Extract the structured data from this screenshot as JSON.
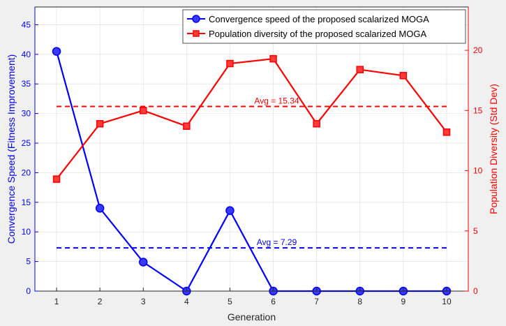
{
  "chart_data": {
    "type": "line",
    "title": "",
    "xlabel": "Generation",
    "ylabel_left": "Convergence Speed (Fitness Improvement)",
    "ylabel_right": "Population Diversity (Std Dev)",
    "x": [
      1,
      2,
      3,
      4,
      5,
      6,
      7,
      8,
      9,
      10
    ],
    "x_ticks": [
      "1",
      "2",
      "3",
      "4",
      "5",
      "6",
      "7",
      "8",
      "9",
      "10"
    ],
    "xlim": [
      0.5,
      10.5
    ],
    "ylim_left": [
      0,
      48
    ],
    "ylim_right": [
      0,
      23.6
    ],
    "y_ticks_left": [
      "0",
      "5",
      "10",
      "15",
      "20",
      "25",
      "30",
      "35",
      "40",
      "45"
    ],
    "y_tick_values_left": [
      0,
      5,
      10,
      15,
      20,
      25,
      30,
      35,
      40,
      45
    ],
    "y_ticks_right": [
      "0",
      "5",
      "10",
      "15",
      "20"
    ],
    "y_tick_values_right": [
      0,
      5,
      10,
      15,
      20
    ],
    "grid": true,
    "legend_position": "top-right",
    "series": [
      {
        "name": "Convergence speed of the proposed scalarized MOGA",
        "axis": "left",
        "color": "#0000ff",
        "marker": "circle",
        "values": [
          40.5,
          14.0,
          4.9,
          0.0,
          13.6,
          0.0,
          0.0,
          0.0,
          0.0,
          0.0
        ],
        "average": {
          "value": 7.29,
          "label": "Avg = 7.29"
        }
      },
      {
        "name": "Population diversity of the proposed scalarized MOGA",
        "axis": "right",
        "color": "#ff0000",
        "marker": "square",
        "values": [
          9.3,
          13.9,
          15.0,
          13.7,
          18.9,
          19.3,
          13.9,
          18.4,
          17.9,
          13.2
        ],
        "average": {
          "value": 15.34,
          "label": "Avg = 15.34"
        }
      }
    ],
    "colors": {
      "plot_bg": "#ffffff",
      "figure_bg": "#f0f0f0",
      "grid": "#dcdcdc",
      "axis_text": "#262626",
      "left_axis": "#0000ff",
      "right_axis": "#ff0000"
    }
  }
}
